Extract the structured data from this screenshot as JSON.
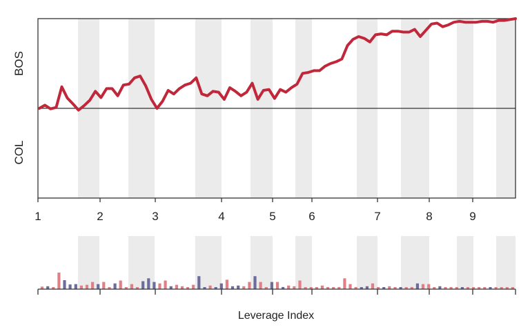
{
  "chart_data": {
    "type": "line",
    "xlabel": "Leverage Index",
    "top_team": "BOS",
    "bottom_team": "COL",
    "x_tick_labels": [
      "1",
      "2",
      "3",
      "4",
      "5",
      "6",
      "7",
      "8",
      "9"
    ],
    "shaded_innings": [
      2,
      3,
      4,
      5,
      6,
      7,
      8,
      9,
      10
    ],
    "colors": {
      "line": "#c0273a",
      "baseline": "#333333",
      "shade": "#ebebeb",
      "bar_top": "#e17f87",
      "bar_bottom": "#6d6d9d",
      "axis": "#333333"
    },
    "ylim": [
      -0.5,
      0.5
    ],
    "win_expectancy": [
      0.0,
      0.035,
      -0.005,
      0.01,
      0.24,
      0.115,
      0.05,
      -0.02,
      0.03,
      0.09,
      0.19,
      0.12,
      0.22,
      0.22,
      0.14,
      0.26,
      0.27,
      0.34,
      0.36,
      0.25,
      0.1,
      0.0,
      0.08,
      0.2,
      0.16,
      0.22,
      0.26,
      0.28,
      0.34,
      0.16,
      0.14,
      0.19,
      0.18,
      0.1,
      0.23,
      0.19,
      0.14,
      0.18,
      0.28,
      0.1,
      0.2,
      0.21,
      0.11,
      0.21,
      0.18,
      0.23,
      0.27,
      0.39,
      0.4,
      0.42,
      0.42,
      0.47,
      0.5,
      0.52,
      0.55,
      0.7,
      0.77,
      0.8,
      0.78,
      0.74,
      0.82,
      0.83,
      0.82,
      0.86,
      0.86,
      0.85,
      0.85,
      0.88,
      0.8,
      0.87,
      0.94,
      0.95,
      0.91,
      0.93,
      0.96,
      0.97,
      0.96,
      0.96,
      0.96,
      0.97,
      0.97,
      0.96,
      0.98,
      0.98,
      0.99,
      1.0
    ]
  }
}
